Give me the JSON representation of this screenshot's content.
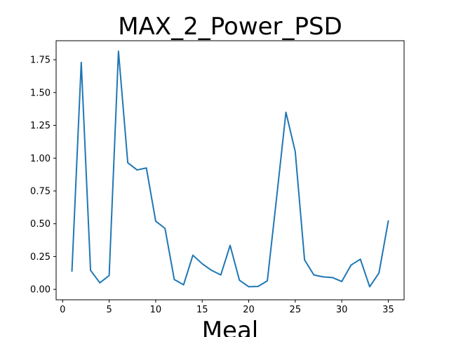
{
  "chart_data": {
    "type": "line",
    "title": "MAX_2_Power_PSD",
    "xlabel": "Meal",
    "ylabel": "",
    "xlim": [
      -0.7,
      36.7
    ],
    "ylim": [
      -0.0795,
      1.895
    ],
    "xticks": [
      0,
      5,
      10,
      15,
      20,
      25,
      30,
      35
    ],
    "xtick_labels": [
      "0",
      "5",
      "10",
      "15",
      "20",
      "25",
      "30",
      "35"
    ],
    "yticks": [
      0.0,
      0.25,
      0.5,
      0.75,
      1.0,
      1.25,
      1.5,
      1.75
    ],
    "ytick_labels": [
      "0.00",
      "0.25",
      "0.50",
      "0.75",
      "1.00",
      "1.25",
      "1.50",
      "1.75"
    ],
    "grid": false,
    "series": [
      {
        "name": "MAX_2_Power_PSD",
        "color": "#1f77b4",
        "x": [
          1,
          2,
          3,
          4,
          5,
          6,
          7,
          8,
          9,
          10,
          11,
          12,
          13,
          14,
          15,
          16,
          17,
          18,
          19,
          20,
          21,
          22,
          23,
          24,
          25,
          26,
          27,
          28,
          29,
          30,
          31,
          32,
          33,
          34,
          35
        ],
        "y": [
          0.14,
          1.73,
          0.145,
          0.05,
          0.105,
          1.815,
          0.965,
          0.91,
          0.925,
          0.52,
          0.465,
          0.075,
          0.035,
          0.26,
          0.195,
          0.145,
          0.11,
          0.335,
          0.07,
          0.02,
          0.022,
          0.065,
          0.7,
          1.35,
          1.05,
          0.225,
          0.11,
          0.095,
          0.09,
          0.06,
          0.185,
          0.23,
          0.02,
          0.125,
          0.52
        ]
      }
    ]
  }
}
